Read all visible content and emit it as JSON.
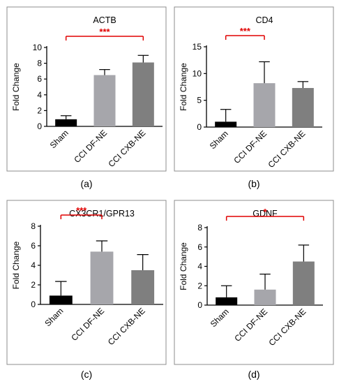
{
  "colors": {
    "sham": "#000000",
    "df": "#a6a6ab",
    "cxb": "#7f7f7f",
    "significance": "#e00000",
    "axis": "#000000",
    "panel_border": "#8c8c8c"
  },
  "chart_data": [
    {
      "type": "bar",
      "panel_label": "(a)",
      "title": "ACTB",
      "ylabel": "Fold Change",
      "xlabel": "",
      "ylim": [
        0,
        10
      ],
      "yticks": [
        0,
        2,
        4,
        6,
        8,
        10
      ],
      "categories": [
        "Sham",
        "CCI  DF-NE",
        "CCI  CXB-NE"
      ],
      "values": [
        0.9,
        6.5,
        8.1
      ],
      "errors": [
        0.45,
        0.7,
        0.9
      ],
      "significance": {
        "from": 0,
        "to": 2,
        "label": "***"
      }
    },
    {
      "type": "bar",
      "panel_label": "(b)",
      "title": "CD4",
      "ylabel": "Fold Change",
      "xlabel": "",
      "ylim": [
        0,
        15
      ],
      "yticks": [
        0,
        5,
        10,
        15
      ],
      "categories": [
        "Sham",
        "CCI  DF-NE",
        "CCI  CXB-NE"
      ],
      "values": [
        1.0,
        8.2,
        7.3
      ],
      "errors": [
        2.3,
        4.0,
        1.2
      ],
      "significance": {
        "from": 0,
        "to": 1,
        "label": "***"
      }
    },
    {
      "type": "bar",
      "panel_label": "(c)",
      "title": "CX3CR1/GPR13",
      "ylabel": "Fold Change",
      "xlabel": "",
      "ylim": [
        0,
        8
      ],
      "yticks": [
        0,
        2,
        4,
        6,
        8
      ],
      "categories": [
        "Sham",
        "CCI  DF-NE",
        "CCI  CXB-NE"
      ],
      "values": [
        0.9,
        5.4,
        3.5
      ],
      "errors": [
        1.45,
        1.1,
        1.6
      ],
      "significance": {
        "from": 0,
        "to": 1,
        "label": "***"
      }
    },
    {
      "type": "bar",
      "panel_label": "(d)",
      "title": "GDNF",
      "ylabel": "Fold Change",
      "xlabel": "",
      "ylim": [
        0,
        8
      ],
      "yticks": [
        0,
        2,
        4,
        6,
        8
      ],
      "categories": [
        "Sham",
        "CCI  DF-NE",
        "CCI  CXB-NE"
      ],
      "values": [
        0.8,
        1.6,
        4.5
      ],
      "errors": [
        1.2,
        1.6,
        1.7
      ],
      "significance": {
        "from": 0,
        "to": 2,
        "label": "*"
      }
    }
  ]
}
